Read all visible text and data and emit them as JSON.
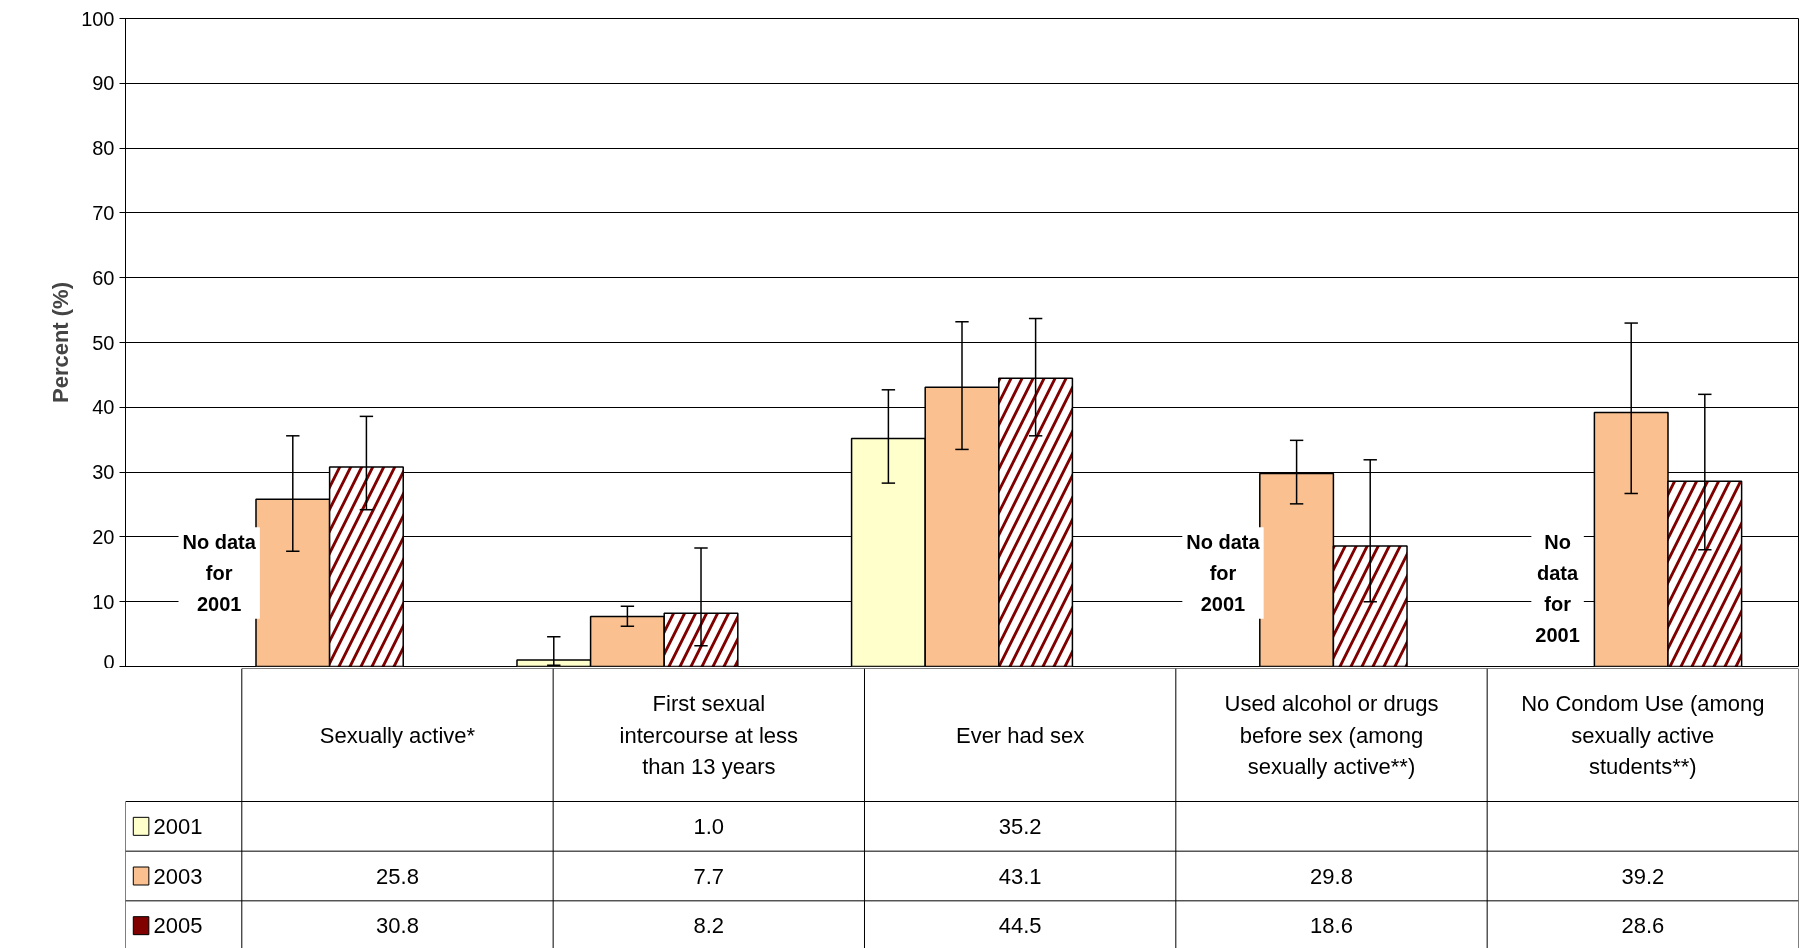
{
  "chart_data": {
    "type": "bar",
    "ylabel": "Percent (%)",
    "categories": [
      "Sexually active*",
      "First sexual intercourse at less than 13 years",
      "Ever had sex",
      "Used alcohol or drugs before sex (among sexually active**)",
      "No Condom Use (among sexually active students**)"
    ],
    "series": [
      {
        "name": "2001",
        "color": "#ffffcc",
        "values": [
          null,
          1.0,
          35.2,
          null,
          null
        ],
        "value_labels": [
          null,
          "1.0",
          "35.2",
          null,
          null
        ],
        "errors": [
          null,
          [
            0.2,
            4.6
          ],
          [
            28.3,
            42.7
          ],
          null,
          null
        ]
      },
      {
        "name": "2003",
        "color": "#fac090",
        "values": [
          25.8,
          7.7,
          43.1,
          29.8,
          39.2
        ],
        "value_labels": [
          "25.8",
          "7.7",
          "43.1",
          "29.8",
          "39.2"
        ],
        "errors": [
          [
            17.8,
            35.6
          ],
          [
            6.2,
            9.3
          ],
          [
            33.5,
            53.2
          ],
          [
            25.1,
            34.9
          ],
          [
            26.7,
            53.0
          ]
        ]
      },
      {
        "name": "2005",
        "color": "#800000",
        "values": [
          30.8,
          8.2,
          44.5,
          18.6,
          28.6
        ],
        "value_labels": [
          "30.8",
          "8.2",
          "44.5",
          "18.6",
          "28.6"
        ],
        "errors": [
          [
            24.2,
            38.6
          ],
          [
            3.2,
            18.3
          ],
          [
            35.6,
            53.7
          ],
          [
            10.0,
            31.9
          ],
          [
            18.0,
            42.0
          ]
        ]
      }
    ],
    "ylim": [
      0,
      100
    ],
    "yticks": [
      0,
      10,
      20,
      30,
      40,
      50,
      60,
      70,
      80,
      90,
      100
    ],
    "grid": "y",
    "legend": "bottom",
    "annotations": [
      "No data\nfor\n2001",
      "No data\nfor\n2001",
      "No\ndata\nfor\n2001"
    ]
  }
}
